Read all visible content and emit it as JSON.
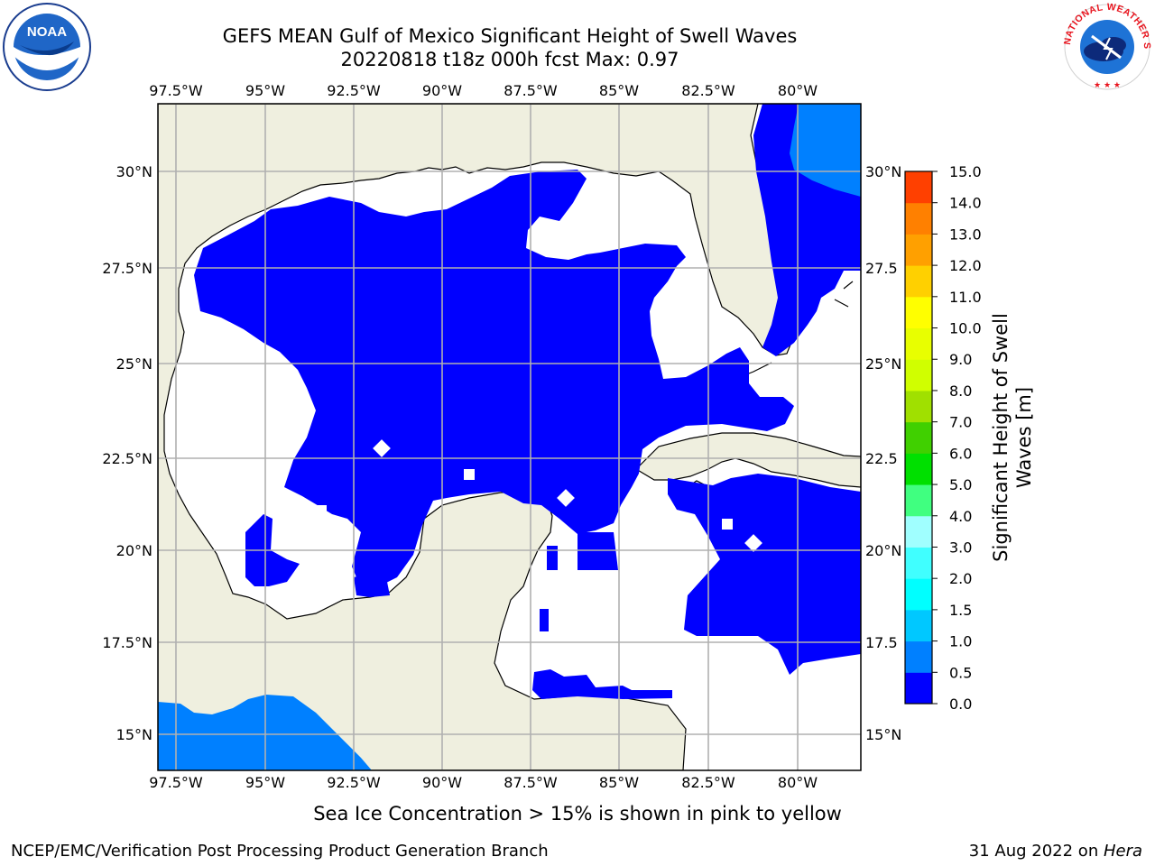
{
  "title": {
    "line1": "GEFS MEAN Gulf of Mexico Significant Height of Swell Waves",
    "line2": "20220818 t18z 000h fcst   Max: 0.97"
  },
  "map": {
    "lon_ticks": [
      "97.5°W",
      "95°W",
      "92.5°W",
      "90°W",
      "87.5°W",
      "85°W",
      "82.5°W",
      "80°W"
    ],
    "lat_ticks_left": [
      "30°N",
      "27.5°N",
      "25°N",
      "22.5°N",
      "20°N",
      "17.5°N",
      "15°N"
    ],
    "lat_ticks_right": [
      "30°N",
      "27.5",
      "25°N",
      "22.5",
      "20°N",
      "17.5",
      "15°N"
    ],
    "land_color": "#efefdf",
    "water_color": "#ffffff",
    "grid_color": "#b0b0b0"
  },
  "colorbar": {
    "label_line1": "Significant Height of Swell",
    "label_line2": "Waves [m]",
    "ticks": [
      "0.0",
      "0.5",
      "1.0",
      "1.5",
      "2.0",
      "3.0",
      "4.0",
      "5.0",
      "6.0",
      "7.0",
      "8.0",
      "9.0",
      "10.0",
      "11.0",
      "12.0",
      "13.0",
      "14.0",
      "15.0"
    ],
    "colors": [
      "#0000ff",
      "#0080ff",
      "#00c8ff",
      "#00ffff",
      "#40ffff",
      "#a0ffff",
      "#40ff80",
      "#00e000",
      "#40d000",
      "#a0e000",
      "#d0ff00",
      "#e8ff00",
      "#ffff00",
      "#ffd000",
      "#ffa000",
      "#ff8000",
      "#ff4000",
      "#ff0000"
    ]
  },
  "logos": {
    "noaa": "NOAA",
    "nws": "NATIONAL WEATHER SERVICE"
  },
  "note": "Sea Ice Concentration > 15% is shown in pink to yellow",
  "footer": {
    "left": "NCEP/EMC/Verification Post Processing Product Generation Branch",
    "right_prefix": "31 Aug 2022 on ",
    "right_machine": "Hera"
  }
}
